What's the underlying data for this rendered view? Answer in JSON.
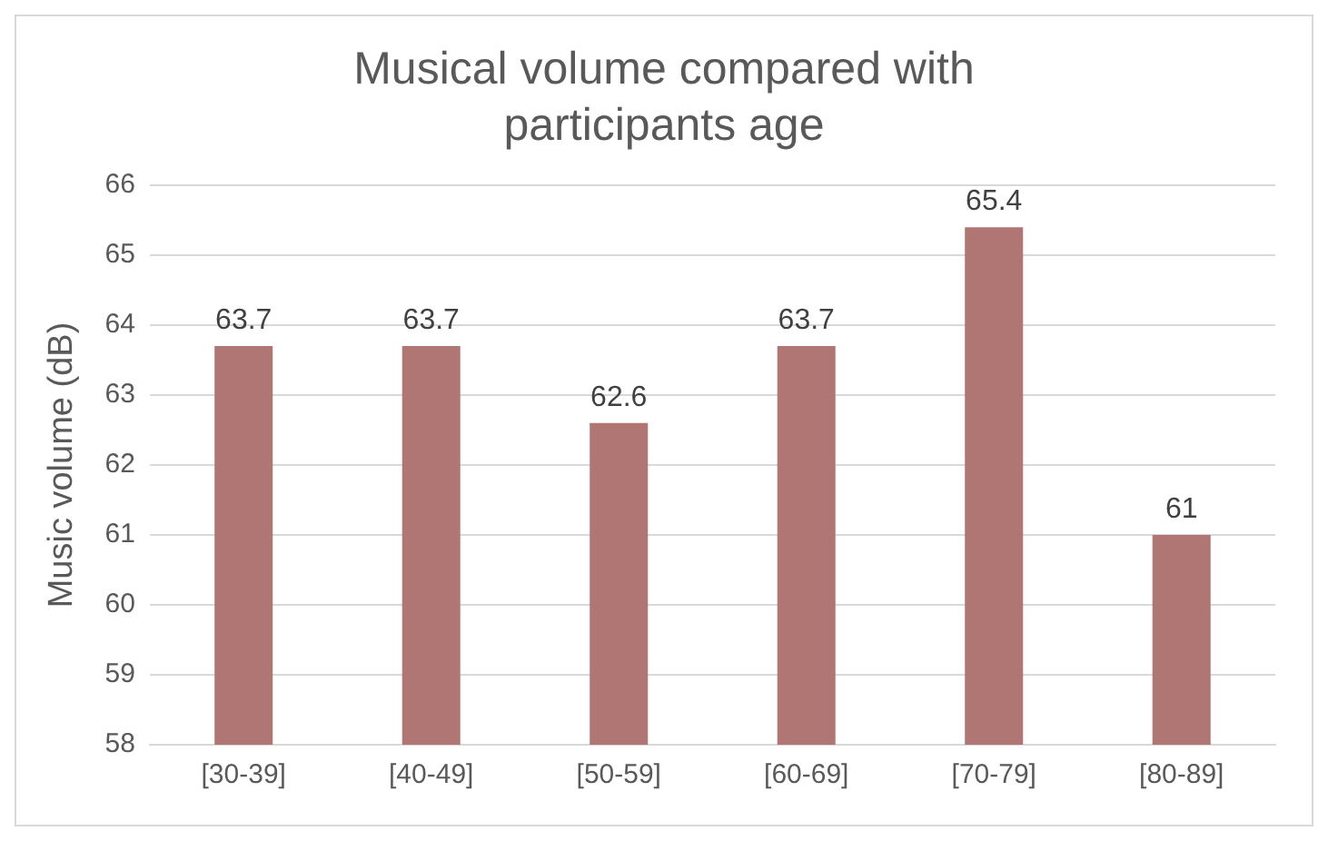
{
  "chart_data": {
    "type": "bar",
    "title": "Musical volume compared with participants age",
    "ylabel": "Music volume (dB)",
    "categories": [
      "[30-39]",
      "[40-49]",
      "[50-59]",
      "[60-69]",
      "[70-79]",
      "[80-89]"
    ],
    "values": [
      63.7,
      63.7,
      62.6,
      63.7,
      65.4,
      61
    ],
    "color": "#b07673",
    "ylim": [
      58,
      66
    ],
    "yticks": [
      58,
      59,
      60,
      61,
      62,
      63,
      64,
      65,
      66
    ],
    "grid": "y",
    "data_labels": true
  }
}
